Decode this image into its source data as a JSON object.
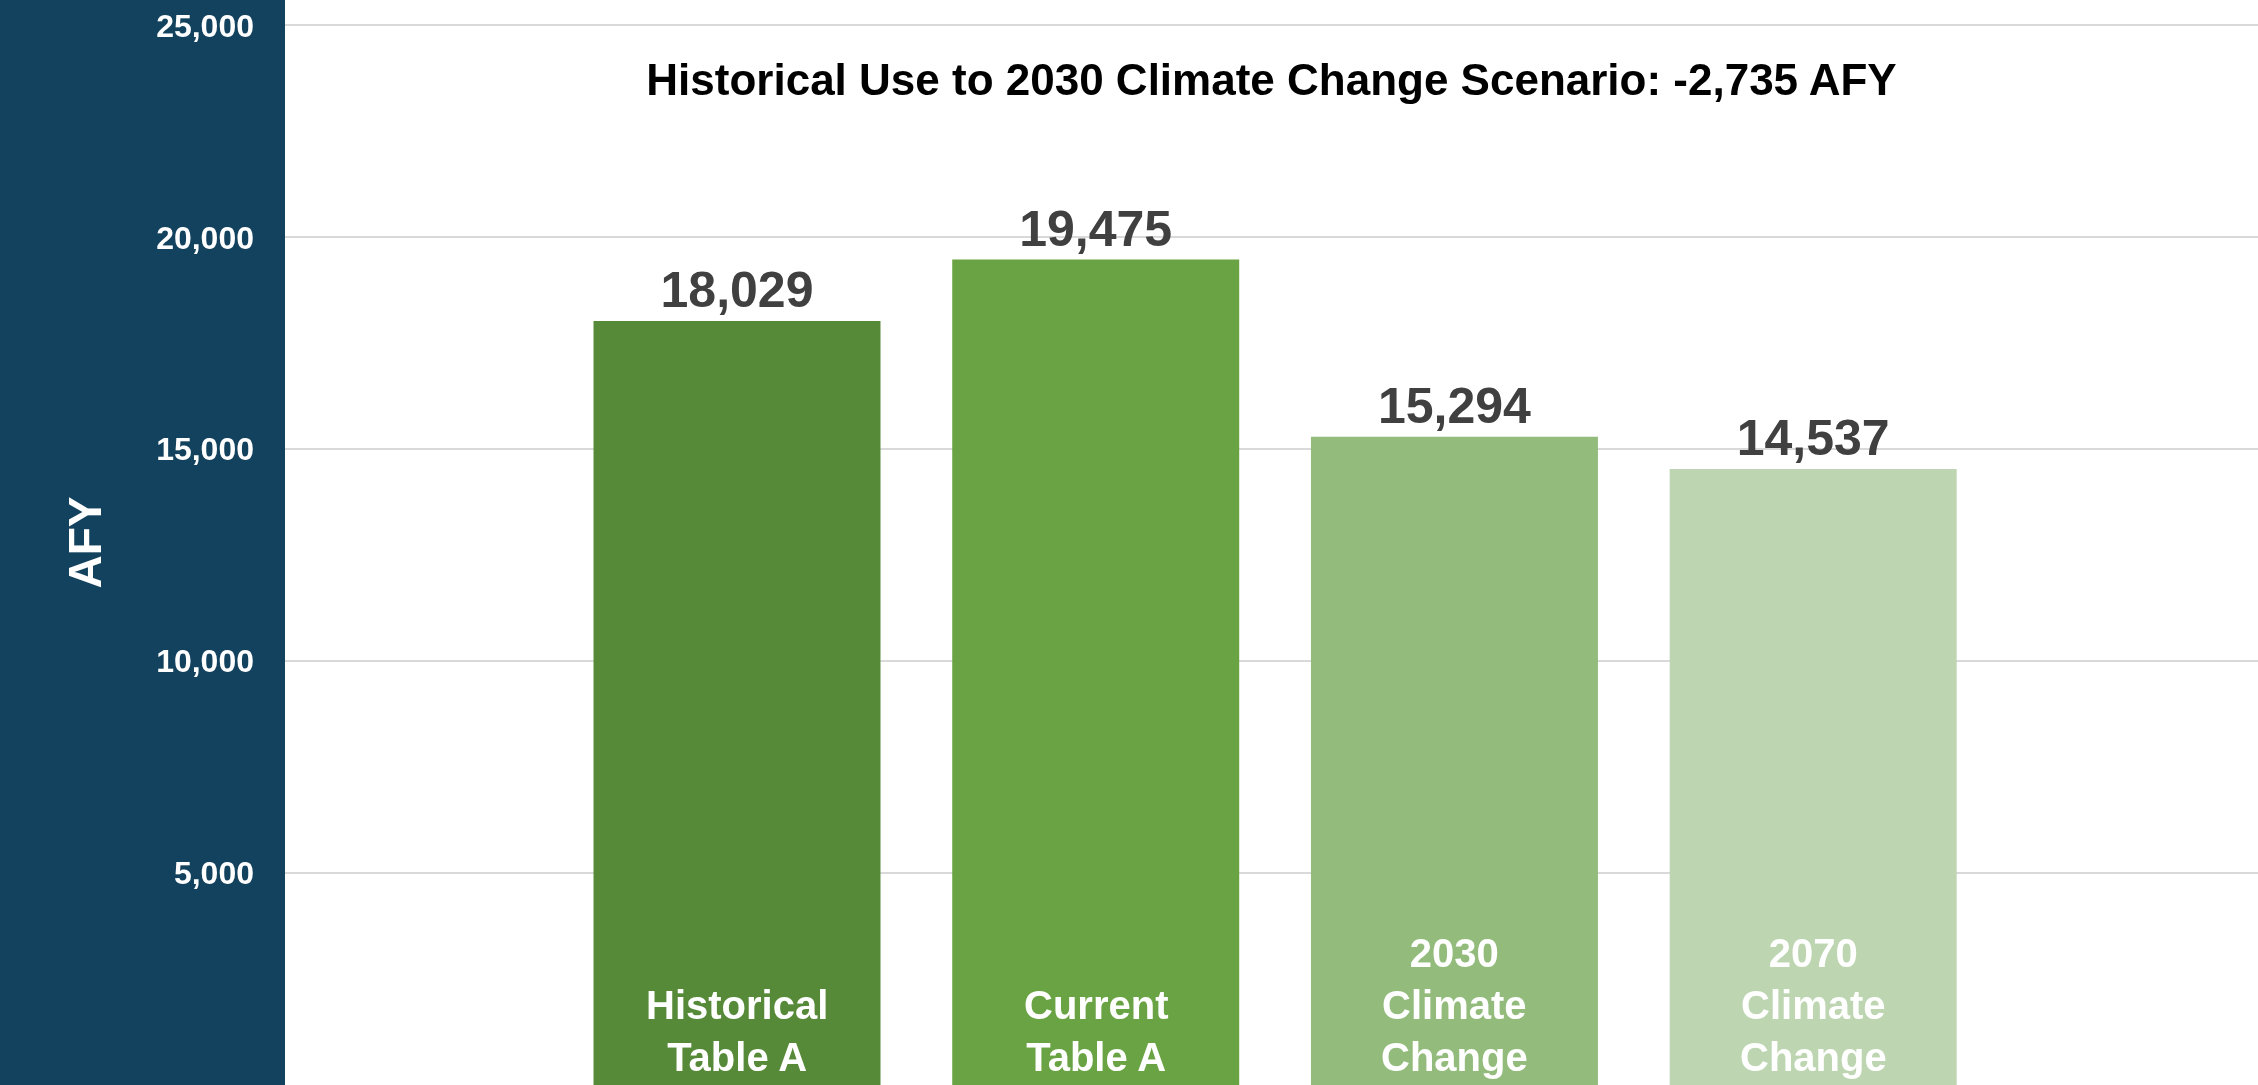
{
  "chart_data": {
    "type": "bar",
    "title": "Historical Use to 2030 Climate Change Scenario: -2,735 AFY",
    "ylabel": "AFY",
    "categories": [
      "Historical\nTable A",
      "Current\nTable A",
      "2030\nClimate\nChange",
      "2070\nClimate\nChange"
    ],
    "values": [
      18029,
      19475,
      15294,
      14537
    ],
    "colors": [
      "#568a38",
      "#6aa343",
      "#93bc7c",
      "#bdd6b1"
    ],
    "value_labels": [
      "18,029",
      "19,475",
      "15,294",
      "14,537"
    ],
    "ylim": [
      0,
      25600
    ],
    "yticks": [
      {
        "value": 5000,
        "label": "5,000"
      },
      {
        "value": 10000,
        "label": "10,000"
      },
      {
        "value": 15000,
        "label": "15,000"
      },
      {
        "value": 20000,
        "label": "20,000"
      },
      {
        "value": 25000,
        "label": "25,000"
      }
    ],
    "grid": "y",
    "legend": false
  }
}
